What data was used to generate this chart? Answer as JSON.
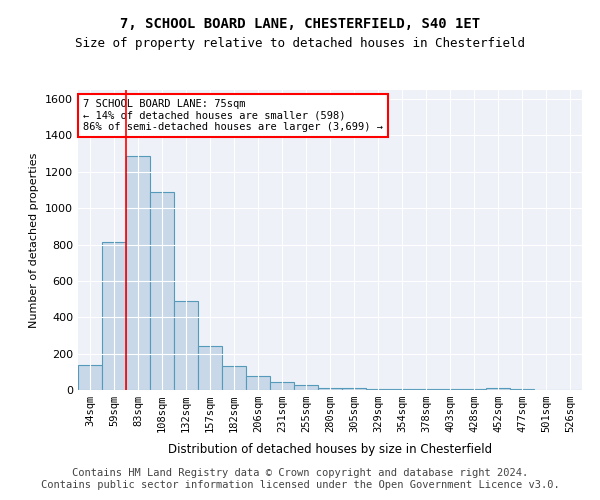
{
  "title": "7, SCHOOL BOARD LANE, CHESTERFIELD, S40 1ET",
  "subtitle": "Size of property relative to detached houses in Chesterfield",
  "xlabel": "Distribution of detached houses by size in Chesterfield",
  "ylabel": "Number of detached properties",
  "bar_color": "#c8d8e8",
  "bar_edge_color": "#5599bb",
  "background_color": "#eef2f8",
  "grid_color": "white",
  "categories": [
    "34sqm",
    "59sqm",
    "83sqm",
    "108sqm",
    "132sqm",
    "157sqm",
    "182sqm",
    "206sqm",
    "231sqm",
    "255sqm",
    "280sqm",
    "305sqm",
    "329sqm",
    "354sqm",
    "378sqm",
    "403sqm",
    "428sqm",
    "452sqm",
    "477sqm",
    "501sqm",
    "526sqm"
  ],
  "values": [
    140,
    815,
    1285,
    1090,
    490,
    240,
    130,
    75,
    42,
    25,
    13,
    10,
    8,
    6,
    5,
    4,
    3,
    10,
    3,
    2,
    2
  ],
  "ylim": [
    0,
    1650
  ],
  "yticks": [
    0,
    200,
    400,
    600,
    800,
    1000,
    1200,
    1400,
    1600
  ],
  "red_line_x": 1.5,
  "annotation_text": "7 SCHOOL BOARD LANE: 75sqm\n← 14% of detached houses are smaller (598)\n86% of semi-detached houses are larger (3,699) →",
  "footer": "Contains HM Land Registry data © Crown copyright and database right 2024.\nContains public sector information licensed under the Open Government Licence v3.0.",
  "footnote_fontsize": 7.5,
  "title_fontsize": 10,
  "subtitle_fontsize": 9
}
